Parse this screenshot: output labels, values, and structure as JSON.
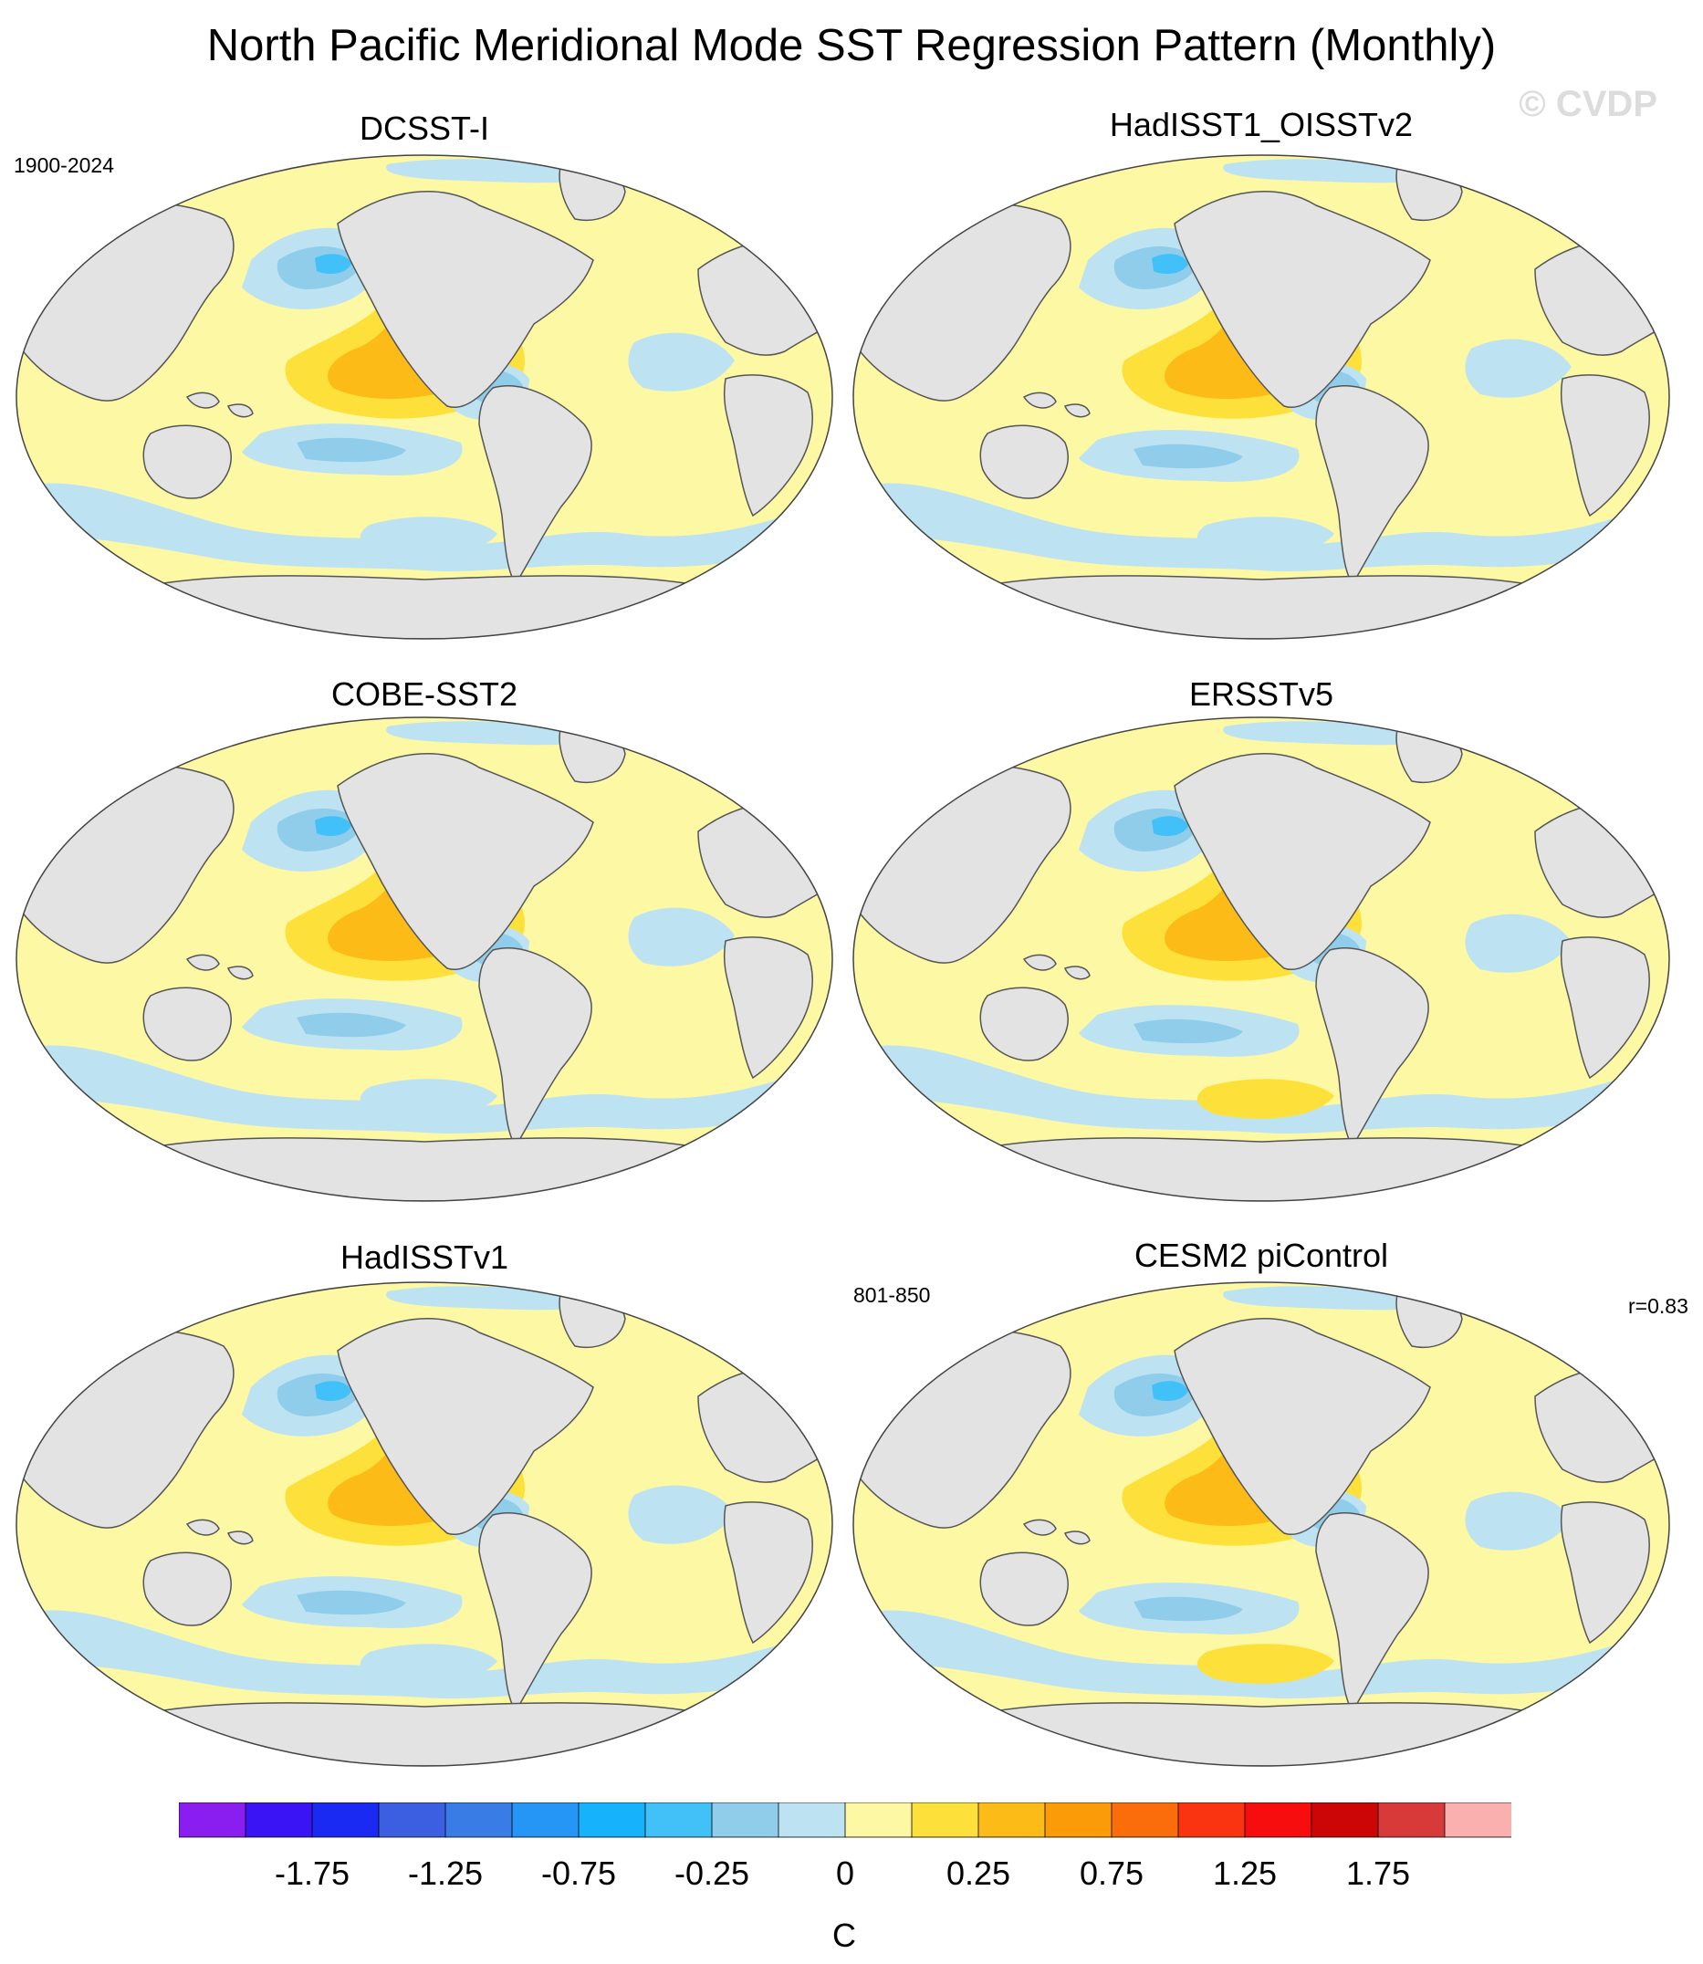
{
  "title": "North Pacific Meridional Mode SST Regression Pattern (Monthly)",
  "watermark": "© CVDP",
  "panels": [
    {
      "title": "DCSST-I",
      "left_note": "1900-2024",
      "right_note": "",
      "variant": 0
    },
    {
      "title": "HadISST1_OISSTv2",
      "left_note": "",
      "right_note": "",
      "variant": 1
    },
    {
      "title": "COBE-SST2",
      "left_note": "",
      "right_note": "",
      "variant": 2
    },
    {
      "title": "ERSSTv5",
      "left_note": "",
      "right_note": "",
      "variant": 3
    },
    {
      "title": "HadISSTv1",
      "left_note": "",
      "right_note": "",
      "variant": 4
    },
    {
      "title": "CESM2 piControl",
      "left_note": "801-850",
      "right_note": "r=0.83",
      "variant": 5
    }
  ],
  "colorbar": {
    "units": "C",
    "colors": [
      "#8a1ef0",
      "#3b14f5",
      "#1a2af2",
      "#3c5ee0",
      "#3a7ce6",
      "#2596f5",
      "#16b2fb",
      "#41c1f7",
      "#8fcdeb",
      "#bde3f3",
      "#fdf8a3",
      "#fde13a",
      "#fcbb16",
      "#fc9b08",
      "#fb6d0b",
      "#fa3311",
      "#f70d0d",
      "#cc0606",
      "#d83a3a",
      "#fbb0b0"
    ],
    "labels": [
      "-1.75",
      "-1.25",
      "-0.75",
      "-0.25",
      "0",
      "0.25",
      "0.75",
      "1.25",
      "1.75"
    ]
  },
  "map_colors": {
    "land": "#e3e3e3",
    "ocean_base": "#fdf8a3",
    "neg_1": "#bde3f3",
    "neg_2": "#8fcdeb",
    "neg_3": "#41c1f7",
    "pos_1": "#fde13a",
    "pos_2": "#fcbb16",
    "pos_3": "#fc9b08"
  }
}
